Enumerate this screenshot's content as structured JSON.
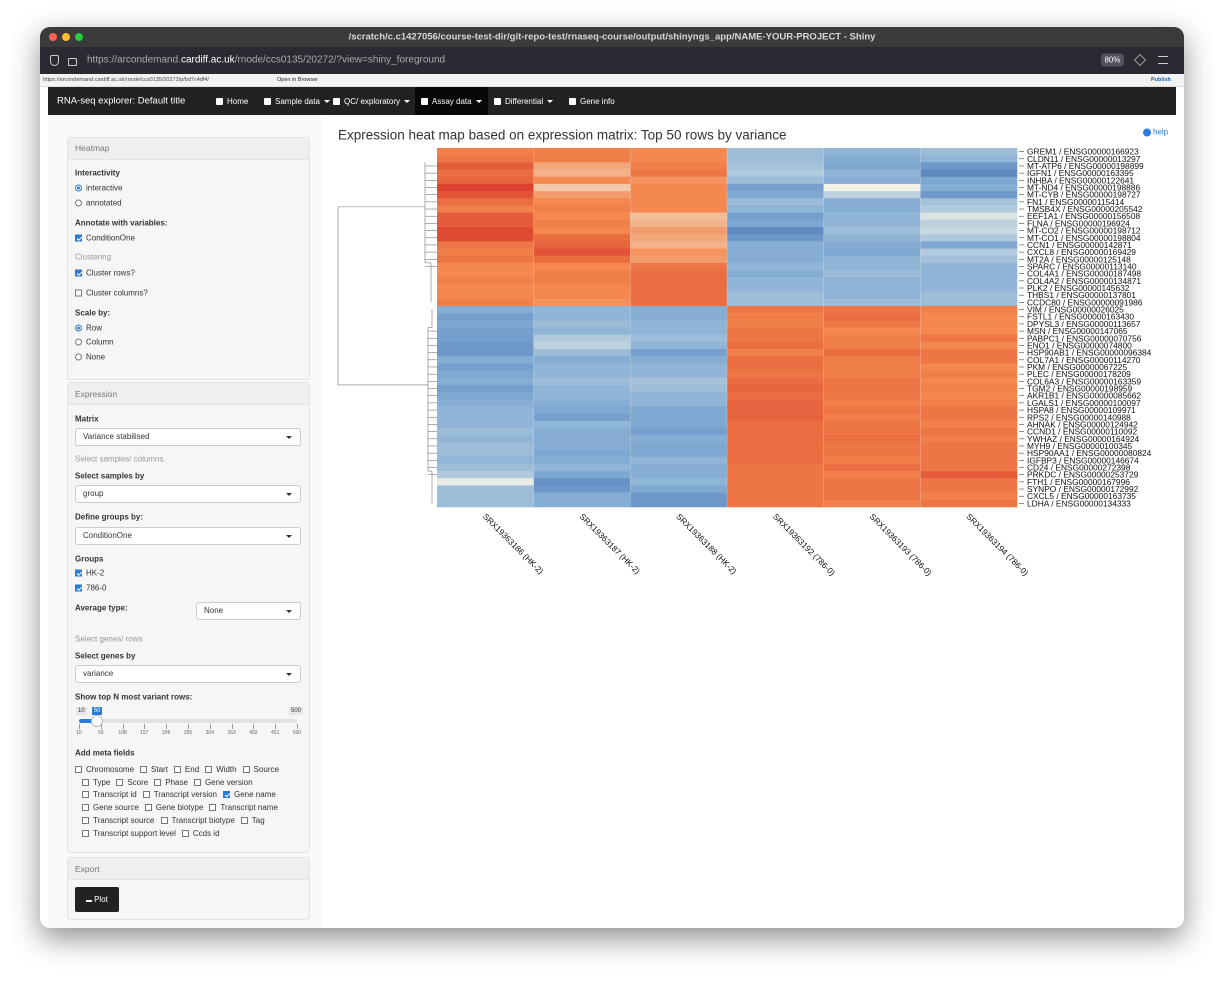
{
  "window": {
    "title": "/scratch/c.c1427056/course-test-dir/git-repo-test/rnaseq-course/output/shinyngs_app/NAME-YOUR-PROJECT - Shiny",
    "url_prefix": "https://arcondemand.",
    "url_domain": "cardiff.ac.uk",
    "url_rest": "/rnode/ccs0135/20272/?view=shiny_foreground",
    "zoom": "80%"
  },
  "toolbar": {
    "url": "https://arcondemand.cardiff.ac.uk/rnode/ccs0135/20272/p/bd7c4df4/",
    "open": "Open in Browser",
    "publish": "Publish"
  },
  "navbar": {
    "brand": "RNA-seq explorer: Default title",
    "items": [
      {
        "label": "Home",
        "dropdown": false,
        "active": false
      },
      {
        "label": "Sample data",
        "dropdown": true,
        "active": false
      },
      {
        "label": "QC/ exploratory",
        "dropdown": true,
        "active": false
      },
      {
        "label": "Assay data",
        "dropdown": true,
        "active": true
      },
      {
        "label": "Differential",
        "dropdown": true,
        "active": false
      },
      {
        "label": "Gene info",
        "dropdown": false,
        "active": false
      }
    ]
  },
  "sidebar": {
    "heatmap": {
      "header": "Heatmap",
      "interactivity": {
        "label": "Interactivity",
        "options": [
          {
            "label": "interactive",
            "checked": true
          },
          {
            "label": "annotated",
            "checked": false
          }
        ]
      },
      "annotate": {
        "label": "Annotate with variables:",
        "options": [
          {
            "label": "ConditionOne",
            "checked": true
          }
        ]
      },
      "clustering": "Clustering",
      "cluster_rows": {
        "label": "Cluster rows?",
        "checked": true
      },
      "cluster_columns": {
        "label": "Cluster columns?",
        "checked": false
      },
      "scale": {
        "label": "Scale by:",
        "options": [
          {
            "label": "Row",
            "checked": true
          },
          {
            "label": "Column",
            "checked": false
          },
          {
            "label": "None",
            "checked": false
          }
        ]
      }
    },
    "expression": {
      "header": "Expression",
      "matrix": {
        "label": "Matrix",
        "value": "Variance stabilised"
      },
      "samples_section": "Select samples/ columns",
      "samples_by": {
        "label": "Select samples by",
        "value": "group"
      },
      "groups_by": {
        "label": "Define groups by:",
        "value": "ConditionOne"
      },
      "groups": {
        "label": "Groups",
        "options": [
          {
            "label": "HK-2",
            "checked": true
          },
          {
            "label": "786-0",
            "checked": true
          }
        ]
      },
      "average": {
        "label": "Average type:",
        "value": "None"
      },
      "genes_section": "Select genes/ rows",
      "genes_by": {
        "label": "Select genes by",
        "value": "variance"
      },
      "top_n": {
        "label": "Show top N most variant rows:",
        "min": 10,
        "max": 500,
        "value": 50,
        "ticks": [
          10,
          59,
          108,
          157,
          206,
          255,
          304,
          353,
          402,
          451,
          500
        ]
      },
      "meta_fields": {
        "label": "Add meta fields",
        "options": [
          {
            "label": "Chromosome",
            "checked": false
          },
          {
            "label": "Start",
            "checked": false
          },
          {
            "label": "End",
            "checked": false
          },
          {
            "label": "Width",
            "checked": false
          },
          {
            "label": "Source",
            "checked": false
          },
          {
            "label": "Type",
            "checked": false
          },
          {
            "label": "Score",
            "checked": false
          },
          {
            "label": "Phase",
            "checked": false
          },
          {
            "label": "Gene version",
            "checked": false
          },
          {
            "label": "Transcript id",
            "checked": false
          },
          {
            "label": "Transcript version",
            "checked": false
          },
          {
            "label": "Gene name",
            "checked": true
          },
          {
            "label": "Gene source",
            "checked": false
          },
          {
            "label": "Gene biotype",
            "checked": false
          },
          {
            "label": "Transcript name",
            "checked": false
          },
          {
            "label": "Transcript source",
            "checked": false
          },
          {
            "label": "Transcript biotype",
            "checked": false
          },
          {
            "label": "Tag",
            "checked": false
          },
          {
            "label": "Transcript support level",
            "checked": false
          },
          {
            "label": "Ccds id",
            "checked": false
          }
        ]
      }
    },
    "export": {
      "header": "Export",
      "button": "Plot"
    }
  },
  "chart_data": {
    "type": "heatmap",
    "title": "Expression heat map based on expression matrix: Top 50 rows by variance",
    "help": "help",
    "colorscale": [
      {
        "value": -2,
        "color": "#3565ad"
      },
      {
        "value": -1,
        "color": "#86aed5"
      },
      {
        "value": 0,
        "color": "#f2f2e6"
      },
      {
        "value": 1,
        "color": "#f4884e"
      },
      {
        "value": 2,
        "color": "#d62f27"
      }
    ],
    "columns": [
      "SRX19363186 (HK-2)",
      "SRX19363187 (HK-2)",
      "SRX19363188 (HK-2)",
      "SRX19363192 (786-0)",
      "SRX19363193 (786-0)",
      "SRX19363194 (786-0)"
    ],
    "rows": [
      "GREM1 / ENSG00000166923",
      "CLDN11 / ENSG00000013297",
      "MT-ATP6 / ENSG00000198899",
      "IGFN1 / ENSG00000163395",
      "INHBA / ENSG00000122641",
      "MT-ND4 / ENSG00000198886",
      "MT-CYB / ENSG00000198727",
      "FN1 / ENSG00000115414",
      "TMSB4X / ENSG00000205542",
      "EEF1A1 / ENSG00000156508",
      "FLNA / ENSG00000196924",
      "MT-CO2 / ENSG00000198712",
      "MT-CO1 / ENSG00000198804",
      "CCN1 / ENSG00000142871",
      "CXCL8 / ENSG00000169429",
      "MT2A / ENSG00000125148",
      "SPARC / ENSG00000113140",
      "COL4A1 / ENSG00000187498",
      "COL4A2 / ENSG00000134871",
      "PLK2 / ENSG00000145632",
      "THBS1 / ENSG00000137801",
      "CCDC80 / ENSG00000091986",
      "VIM / ENSG00000026025",
      "FSTL1 / ENSG00000163430",
      "DPYSL3 / ENSG00000113657",
      "MSN / ENSG00000147065",
      "PABPC1 / ENSG00000070756",
      "ENO1 / ENSG00000074800",
      "HSP90AB1 / ENSG00000096384",
      "COL7A1 / ENSG00000114270",
      "PKM / ENSG00000067225",
      "PLEC / ENSG00000178209",
      "COL6A3 / ENSG00000163359",
      "TGM2 / ENSG00000198959",
      "AKR1B1 / ENSG00000085662",
      "LGALS1 / ENSG00000100097",
      "HSPA8 / ENSG00000109971",
      "RPS2 / ENSG00000140988",
      "AHNAK / ENSG00000124942",
      "CCND1 / ENSG00000110092",
      "YWHAZ / ENSG00000164924",
      "MYH9 / ENSG00000100345",
      "HSP90AA1 / ENSG00000080824",
      "IGFBP3 / ENSG00000146674",
      "CD24 / ENSG00000272398",
      "PRKDC / ENSG00000253729",
      "FTH1 / ENSG00000167996",
      "SYNPO / ENSG00000172992",
      "CXCL5 / ENSG00000163735",
      "LDHA / ENSG00000134333"
    ],
    "values": [
      [
        1.1,
        1.1,
        1.0,
        -0.8,
        -0.9,
        -0.8
      ],
      [
        1.2,
        1.1,
        1.0,
        -0.8,
        -1.0,
        -0.9
      ],
      [
        1.5,
        0.7,
        1.1,
        -0.7,
        -1.1,
        -1.3
      ],
      [
        1.3,
        0.6,
        1.2,
        -0.6,
        -0.9,
        -1.5
      ],
      [
        1.4,
        1.0,
        0.9,
        -0.8,
        -1.0,
        -1.1
      ],
      [
        1.8,
        0.4,
        1.0,
        -1.2,
        0.0,
        -1.0
      ],
      [
        1.6,
        0.8,
        1.0,
        -1.1,
        -0.5,
        -1.3
      ],
      [
        1.3,
        1.0,
        1.0,
        -0.8,
        -1.0,
        -0.7
      ],
      [
        1.1,
        1.1,
        1.0,
        -0.9,
        -1.0,
        -0.6
      ],
      [
        1.5,
        1.0,
        0.5,
        -1.2,
        -0.9,
        -0.2
      ],
      [
        1.5,
        1.1,
        0.6,
        -1.1,
        -0.9,
        -0.5
      ],
      [
        1.7,
        1.0,
        0.8,
        -1.5,
        -0.8,
        -0.4
      ],
      [
        1.7,
        1.3,
        0.7,
        -1.3,
        -0.9,
        -0.6
      ],
      [
        1.2,
        1.4,
        0.6,
        -1.0,
        -1.0,
        -1.1
      ],
      [
        1.1,
        1.6,
        0.9,
        -1.0,
        -1.1,
        -0.6
      ],
      [
        1.2,
        1.3,
        0.8,
        -1.0,
        -0.9,
        -0.7
      ],
      [
        1.0,
        1.0,
        1.2,
        -0.9,
        -0.9,
        -0.9
      ],
      [
        1.0,
        1.1,
        1.3,
        -1.0,
        -0.8,
        -0.9
      ],
      [
        1.1,
        1.1,
        1.3,
        -0.9,
        -0.9,
        -0.9
      ],
      [
        1.0,
        1.0,
        1.3,
        -0.9,
        -0.9,
        -0.9
      ],
      [
        1.0,
        1.0,
        1.3,
        -0.8,
        -0.9,
        -0.8
      ],
      [
        1.1,
        0.9,
        1.3,
        -0.8,
        -0.8,
        -0.8
      ],
      [
        -1.0,
        -0.9,
        -1.0,
        1.2,
        1.2,
        1.1
      ],
      [
        -1.2,
        -0.9,
        -1.0,
        1.1,
        1.3,
        1.0
      ],
      [
        -1.1,
        -0.8,
        -0.9,
        1.1,
        1.2,
        1.0
      ],
      [
        -1.2,
        -0.9,
        -0.9,
        1.2,
        1.0,
        1.0
      ],
      [
        -1.2,
        -0.6,
        -0.8,
        1.2,
        1.1,
        1.2
      ],
      [
        -1.3,
        -0.5,
        -0.9,
        1.3,
        1.1,
        1.0
      ],
      [
        -1.3,
        -0.8,
        -1.2,
        1.1,
        1.3,
        1.2
      ],
      [
        -1.0,
        -1.0,
        -1.0,
        1.3,
        1.1,
        1.2
      ],
      [
        -1.2,
        -0.9,
        -0.9,
        1.3,
        1.1,
        1.0
      ],
      [
        -1.1,
        -0.9,
        -0.9,
        1.2,
        1.1,
        1.1
      ],
      [
        -1.0,
        -0.8,
        -0.7,
        1.3,
        1.2,
        1.0
      ],
      [
        -1.2,
        -0.9,
        -0.8,
        1.4,
        1.2,
        1.1
      ],
      [
        -1.1,
        -0.9,
        -0.9,
        1.3,
        1.2,
        1.0
      ],
      [
        -1.0,
        -1.0,
        -0.9,
        1.4,
        1.1,
        1.1
      ],
      [
        -0.9,
        -1.1,
        -1.1,
        1.4,
        1.2,
        1.2
      ],
      [
        -0.9,
        -1.2,
        -1.1,
        1.4,
        1.1,
        1.2
      ],
      [
        -0.9,
        -0.9,
        -1.1,
        1.3,
        1.2,
        1.1
      ],
      [
        -0.8,
        -1.0,
        -1.2,
        1.3,
        1.2,
        1.2
      ],
      [
        -0.9,
        -1.0,
        -1.0,
        1.3,
        1.3,
        1.1
      ],
      [
        -0.8,
        -1.0,
        -1.1,
        1.3,
        1.2,
        1.2
      ],
      [
        -0.8,
        -1.1,
        -1.1,
        1.3,
        1.2,
        1.2
      ],
      [
        -0.9,
        -1.0,
        -0.9,
        1.3,
        1.1,
        1.2
      ],
      [
        -0.8,
        -0.9,
        -1.0,
        1.2,
        1.3,
        1.2
      ],
      [
        -0.6,
        -1.1,
        -1.0,
        1.2,
        1.1,
        1.5
      ],
      [
        -0.1,
        -1.4,
        -0.9,
        1.2,
        1.2,
        1.2
      ],
      [
        -0.8,
        -1.3,
        -1.1,
        1.2,
        1.2,
        1.2
      ],
      [
        -0.8,
        -1.0,
        -1.3,
        1.2,
        1.2,
        1.1
      ],
      [
        -0.8,
        -1.0,
        -1.3,
        1.2,
        1.1,
        1.2
      ]
    ]
  }
}
